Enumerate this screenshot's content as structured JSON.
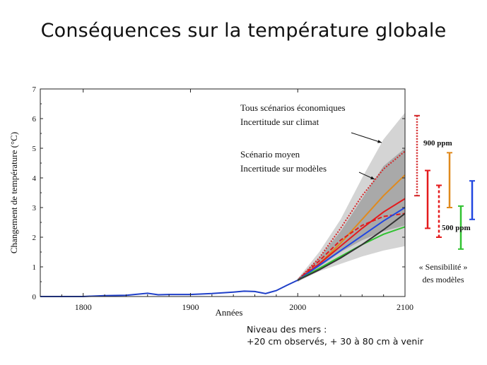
{
  "slide": {
    "title": "Conséquences sur la température globale"
  },
  "chart_data": {
    "type": "line",
    "xlabel": "Années",
    "ylabel": "Changement de température (°C)",
    "xlim": [
      1760,
      2100
    ],
    "ylim": [
      0,
      7
    ],
    "xticks": [
      1800,
      1900,
      2000,
      2100
    ],
    "yticks": [
      0,
      1,
      2,
      3,
      4,
      5,
      6,
      7
    ],
    "grid": false,
    "historical": {
      "color": "#1f3fc8",
      "x": [
        1760,
        1800,
        1820,
        1840,
        1860,
        1870,
        1880,
        1900,
        1920,
        1940,
        1950,
        1960,
        1970,
        1980,
        1990,
        2000
      ],
      "y": [
        0.0,
        0.0,
        0.03,
        0.04,
        0.11,
        0.06,
        0.07,
        0.07,
        0.1,
        0.15,
        0.18,
        0.17,
        0.1,
        0.2,
        0.38,
        0.55
      ]
    },
    "envelope_all_scenarios": {
      "color": "#d4d4d4",
      "x": [
        2000,
        2020,
        2040,
        2060,
        2080,
        2100
      ],
      "upper": [
        0.6,
        1.5,
        2.6,
        4.0,
        5.3,
        6.2
      ],
      "lower": [
        0.5,
        0.85,
        1.1,
        1.35,
        1.55,
        1.7
      ]
    },
    "envelope_mean_scenario": {
      "color": "#a9a9a9",
      "x": [
        2000,
        2020,
        2040,
        2060,
        2080,
        2100
      ],
      "upper": [
        0.6,
        1.3,
        2.2,
        3.3,
        4.4,
        5.0
      ],
      "lower": [
        0.5,
        1.0,
        1.5,
        1.9,
        2.2,
        2.4
      ]
    },
    "series": [
      {
        "color": "#d4282a",
        "dash": "2,2",
        "x": [
          2000,
          2020,
          2040,
          2060,
          2080,
          2100
        ],
        "y": [
          0.55,
          1.3,
          2.3,
          3.4,
          4.3,
          4.9
        ]
      },
      {
        "color": "#e08a1e",
        "dash": "",
        "x": [
          2000,
          2020,
          2040,
          2060,
          2080,
          2100
        ],
        "y": [
          0.55,
          1.1,
          1.8,
          2.6,
          3.4,
          4.1
        ]
      },
      {
        "color": "#e41a1c",
        "dash": "",
        "x": [
          2000,
          2020,
          2040,
          2060,
          2080,
          2100
        ],
        "y": [
          0.55,
          1.1,
          1.7,
          2.3,
          2.85,
          3.3
        ]
      },
      {
        "color": "#e41a1c",
        "dash": "6,3",
        "x": [
          2000,
          2020,
          2040,
          2060,
          2080,
          2100
        ],
        "y": [
          0.55,
          1.2,
          1.9,
          2.4,
          2.7,
          2.8
        ]
      },
      {
        "color": "#2146e0",
        "dash": "",
        "x": [
          2000,
          2020,
          2040,
          2060,
          2080,
          2100
        ],
        "y": [
          0.55,
          1.05,
          1.55,
          2.05,
          2.55,
          3.0
        ]
      },
      {
        "color": "#31c231",
        "dash": "",
        "x": [
          2000,
          2020,
          2040,
          2060,
          2080,
          2100
        ],
        "y": [
          0.55,
          0.95,
          1.35,
          1.75,
          2.1,
          2.35
        ]
      },
      {
        "color": "#333333",
        "dash": "",
        "x": [
          2000,
          2020,
          2040,
          2060,
          2080,
          2100
        ],
        "y": [
          0.55,
          0.9,
          1.3,
          1.75,
          2.25,
          2.8
        ]
      }
    ],
    "annotations": {
      "all_scenarios_line1": "Tous scénarios économiques",
      "all_scenarios_line2": "Incertitude sur climat",
      "mean_scenario_line1": "Scénario moyen",
      "mean_scenario_line2": "Incertitude sur modèles"
    },
    "sensitivity_bars": [
      {
        "color": "#d4282a",
        "dash": "2,2",
        "low": 3.4,
        "high": 6.1
      },
      {
        "color": "#e41a1c",
        "dash": "",
        "low": 2.3,
        "high": 4.25
      },
      {
        "color": "#e41a1c",
        "dash": "4,3",
        "low": 2.0,
        "high": 3.75
      },
      {
        "color": "#e08a1e",
        "dash": "",
        "low": 3.0,
        "high": 4.85
      },
      {
        "color": "#31c231",
        "dash": "",
        "low": 1.6,
        "high": 3.05
      },
      {
        "color": "#2146e0",
        "dash": "",
        "low": 2.6,
        "high": 3.9
      }
    ],
    "sensitivity_labels": {
      "high_ppm": "900 ppm",
      "low_ppm": "500 ppm",
      "caption_line1": "« Sensibilité »",
      "caption_line2": "des modèles"
    }
  },
  "note": {
    "line1": "Niveau des mers :",
    "line2": "+20 cm observés, + 30 à 80 cm à venir"
  }
}
